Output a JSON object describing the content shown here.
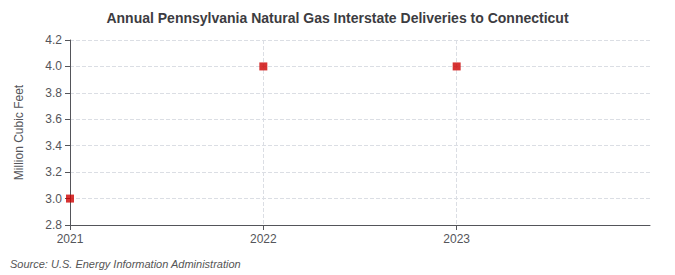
{
  "chart_data": {
    "type": "scatter",
    "title": "Annual Pennsylvania Natural Gas Interstate Deliveries to Connecticut",
    "y_label": "Million Cubic Feet",
    "annotations": [
      "Source: U.S. Energy Information Administration"
    ],
    "x": [
      2021,
      2022,
      2023
    ],
    "values": [
      3.0,
      4.0,
      4.0
    ],
    "color": "#cc0000",
    "marker": "square",
    "xlim": [
      2021,
      2024.0
    ],
    "xticks": [
      2021,
      2022,
      2023
    ],
    "ylim": [
      2.8,
      4.2
    ],
    "yticks": [
      2.8,
      {
        "value": 3.0,
        "label": "3.0"
      },
      3.2,
      3.4,
      3.6,
      3.8,
      {
        "value": 4.0,
        "label": "4.0"
      },
      4.2
    ],
    "grid": true
  }
}
